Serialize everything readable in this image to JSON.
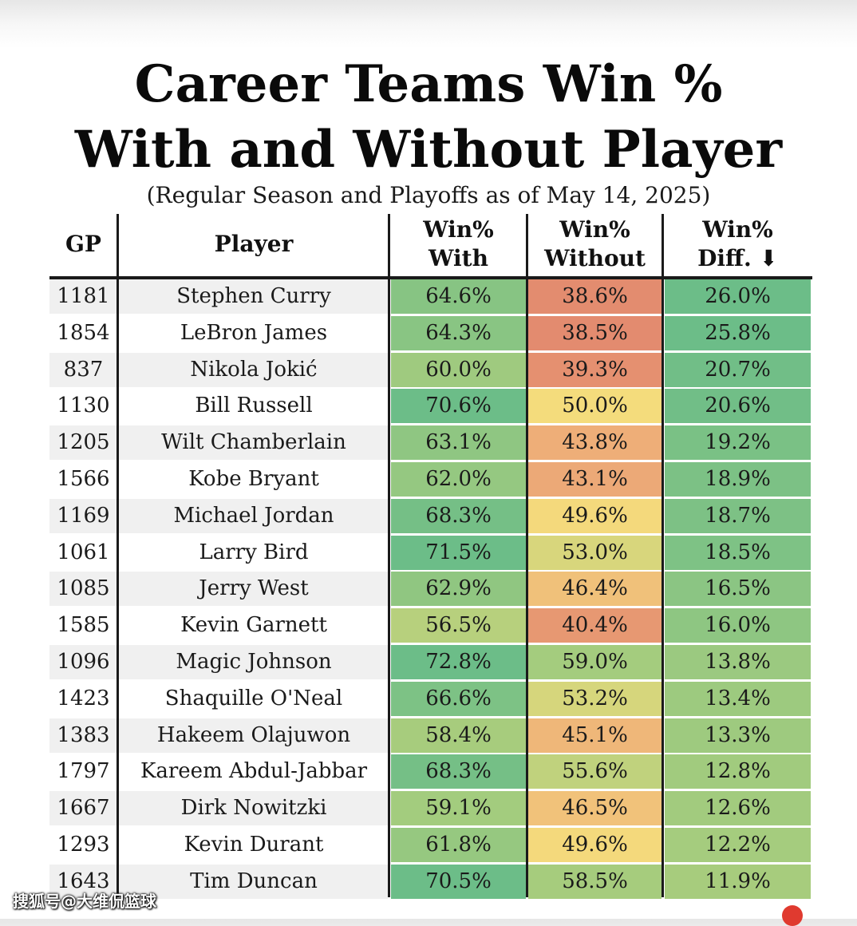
{
  "header": {
    "title_line1": "Career Teams Win %",
    "title_line2": "With and Without Player",
    "subtitle": "(Regular Season and Playoffs as of May 14, 2025)"
  },
  "columns": {
    "gp": "GP",
    "player": "Player",
    "with_line1": "Win%",
    "with_line2": "With",
    "without_line1": "Win%",
    "without_line2": "Without",
    "diff_line1": "Win%",
    "diff_line2": "Diff. ⬇"
  },
  "watermark": "搜狐号@大维侃篮球",
  "colors": {
    "green_dark": "#6cbd88",
    "green_light": "#a9cd7d",
    "yellow": "#f4dc7c",
    "orange": "#eeaf78",
    "red": "#e2886e",
    "row_alt": "#f0f0f0",
    "row_base": "#ffffff",
    "badge": "#e03a2f"
  },
  "chart_data": {
    "type": "table",
    "title": "Career Teams Win % With and Without Player",
    "subtitle": "(Regular Season and Playoffs as of May 14, 2025)",
    "sort": "Win% Diff. descending",
    "columns": [
      "GP",
      "Player",
      "Win% With",
      "Win% Without",
      "Win% Diff."
    ],
    "rows": [
      {
        "gp": "1181",
        "player": "Stephen Curry",
        "with": "64.6%",
        "without": "38.6%",
        "diff": "26.0%",
        "with_val": 64.6,
        "without_val": 38.6,
        "diff_val": 26.0
      },
      {
        "gp": "1854",
        "player": "LeBron James",
        "with": "64.3%",
        "without": "38.5%",
        "diff": "25.8%",
        "with_val": 64.3,
        "without_val": 38.5,
        "diff_val": 25.8
      },
      {
        "gp": "837",
        "player": "Nikola Jokić",
        "with": "60.0%",
        "without": "39.3%",
        "diff": "20.7%",
        "with_val": 60.0,
        "without_val": 39.3,
        "diff_val": 20.7
      },
      {
        "gp": "1130",
        "player": "Bill Russell",
        "with": "70.6%",
        "without": "50.0%",
        "diff": "20.6%",
        "with_val": 70.6,
        "without_val": 50.0,
        "diff_val": 20.6
      },
      {
        "gp": "1205",
        "player": "Wilt Chamberlain",
        "with": "63.1%",
        "without": "43.8%",
        "diff": "19.2%",
        "with_val": 63.1,
        "without_val": 43.8,
        "diff_val": 19.2
      },
      {
        "gp": "1566",
        "player": "Kobe Bryant",
        "with": "62.0%",
        "without": "43.1%",
        "diff": "18.9%",
        "with_val": 62.0,
        "without_val": 43.1,
        "diff_val": 18.9
      },
      {
        "gp": "1169",
        "player": "Michael Jordan",
        "with": "68.3%",
        "without": "49.6%",
        "diff": "18.7%",
        "with_val": 68.3,
        "without_val": 49.6,
        "diff_val": 18.7
      },
      {
        "gp": "1061",
        "player": "Larry Bird",
        "with": "71.5%",
        "without": "53.0%",
        "diff": "18.5%",
        "with_val": 71.5,
        "without_val": 53.0,
        "diff_val": 18.5
      },
      {
        "gp": "1085",
        "player": "Jerry West",
        "with": "62.9%",
        "without": "46.4%",
        "diff": "16.5%",
        "with_val": 62.9,
        "without_val": 46.4,
        "diff_val": 16.5
      },
      {
        "gp": "1585",
        "player": "Kevin Garnett",
        "with": "56.5%",
        "without": "40.4%",
        "diff": "16.0%",
        "with_val": 56.5,
        "without_val": 40.4,
        "diff_val": 16.0
      },
      {
        "gp": "1096",
        "player": "Magic Johnson",
        "with": "72.8%",
        "without": "59.0%",
        "diff": "13.8%",
        "with_val": 72.8,
        "without_val": 59.0,
        "diff_val": 13.8
      },
      {
        "gp": "1423",
        "player": "Shaquille O'Neal",
        "with": "66.6%",
        "without": "53.2%",
        "diff": "13.4%",
        "with_val": 66.6,
        "without_val": 53.2,
        "diff_val": 13.4
      },
      {
        "gp": "1383",
        "player": "Hakeem Olajuwon",
        "with": "58.4%",
        "without": "45.1%",
        "diff": "13.3%",
        "with_val": 58.4,
        "without_val": 45.1,
        "diff_val": 13.3
      },
      {
        "gp": "1797",
        "player": "Kareem Abdul-Jabbar",
        "with": "68.3%",
        "without": "55.6%",
        "diff": "12.8%",
        "with_val": 68.3,
        "without_val": 55.6,
        "diff_val": 12.8
      },
      {
        "gp": "1667",
        "player": "Dirk Nowitzki",
        "with": "59.1%",
        "without": "46.5%",
        "diff": "12.6%",
        "with_val": 59.1,
        "without_val": 46.5,
        "diff_val": 12.6
      },
      {
        "gp": "1293",
        "player": "Kevin Durant",
        "with": "61.8%",
        "without": "49.6%",
        "diff": "12.2%",
        "with_val": 61.8,
        "without_val": 49.6,
        "diff_val": 12.2
      },
      {
        "gp": "1643",
        "player": "Tim Duncan",
        "with": "70.5%",
        "without": "58.5%",
        "diff": "11.9%",
        "with_val": 70.5,
        "without_val": 58.5,
        "diff_val": 11.9
      }
    ]
  }
}
